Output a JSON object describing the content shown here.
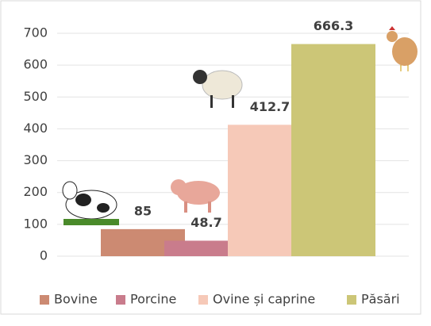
{
  "chart_data": {
    "type": "bar",
    "series": [
      {
        "name": "Bovine",
        "color": "#cc8a72",
        "values": [
          85
        ]
      },
      {
        "name": "Porcine",
        "color": "#c97c8c",
        "values": [
          48.7
        ]
      },
      {
        "name": "Ovine și caprine",
        "color": "#f6c9b8",
        "values": [
          412.7
        ]
      },
      {
        "name": "Păsări",
        "color": "#ccc677",
        "values": [
          666.3
        ]
      }
    ],
    "ylim": [
      0,
      700
    ],
    "yticks": [
      0,
      100,
      200,
      300,
      400,
      500,
      600,
      700
    ],
    "grid": true,
    "legend": "bottom"
  }
}
